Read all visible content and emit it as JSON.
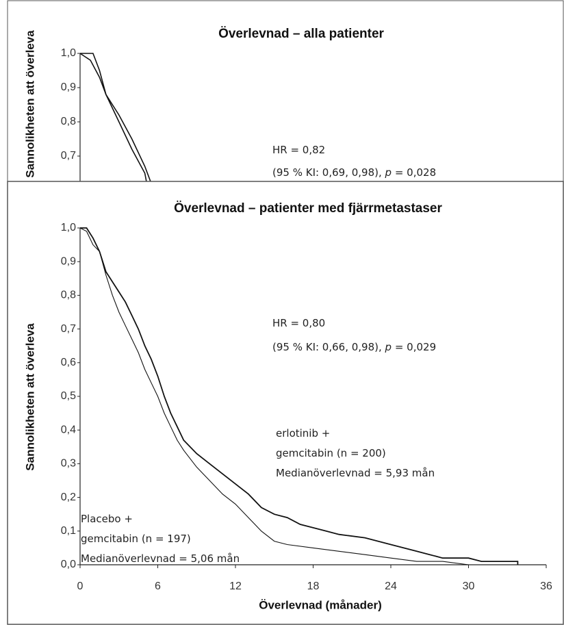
{
  "chart_data": [
    {
      "type": "line",
      "title": "Överlevnad – alla patienter",
      "ylabel": "Sannolikheten att överleva",
      "xlim": [
        0,
        36
      ],
      "ylim": [
        0,
        1
      ],
      "yticks": [
        {
          "value": 0.7,
          "label": "0,7"
        },
        {
          "value": 0.8,
          "label": "0,8"
        },
        {
          "value": 0.9,
          "label": "0,9"
        },
        {
          "value": 1,
          "label": "1,0"
        }
      ],
      "series": [
        {
          "color": "#111111",
          "x": [
            0,
            1,
            1.5,
            2,
            3,
            4,
            5,
            5.6
          ],
          "values": [
            1,
            1,
            0.95,
            0.88,
            0.82,
            0.75,
            0.67,
            0.61
          ]
        },
        {
          "color": "#111111",
          "x": [
            0,
            0.8,
            1.5,
            2,
            3,
            4,
            5,
            5.2
          ],
          "values": [
            1,
            0.98,
            0.93,
            0.88,
            0.8,
            0.72,
            0.65,
            0.61
          ]
        }
      ],
      "annotations": [
        {
          "lines": [
            [
              {
                "text": "HR = 0,82"
              }
            ],
            [
              {
                "text": "(95 % KI: 0,69, 0,98), "
              },
              {
                "text": "p",
                "italic": true
              },
              {
                "text": " = 0,028"
              }
            ]
          ]
        }
      ]
    },
    {
      "type": "line",
      "title": "Överlevnad – patienter med fjärrmetastaser",
      "ylabel": "Sannolikheten att överleva",
      "xlabel": "Överlevnad (månader)",
      "xlim": [
        0,
        36
      ],
      "ylim": [
        0,
        1
      ],
      "xticks": [
        0,
        6,
        12,
        18,
        24,
        30,
        36
      ],
      "yticks": [
        {
          "value": 0,
          "label": "0,0"
        },
        {
          "value": 0.1,
          "label": "0,1"
        },
        {
          "value": 0.2,
          "label": "0,2"
        },
        {
          "value": 0.3,
          "label": "0,3"
        },
        {
          "value": 0.4,
          "label": "0,4"
        },
        {
          "value": 0.5,
          "label": "0,5"
        },
        {
          "value": 0.6,
          "label": "0,6"
        },
        {
          "value": 0.7,
          "label": "0,7"
        },
        {
          "value": 0.8,
          "label": "0,8"
        },
        {
          "value": 0.9,
          "label": "0,9"
        },
        {
          "value": 1,
          "label": "1,0"
        }
      ],
      "series": [
        {
          "color": "#111111",
          "x": [
            0,
            0.5,
            1,
            1.5,
            2,
            2.5,
            3,
            3.5,
            4,
            4.5,
            5,
            5.5,
            6,
            6.5,
            7,
            7.5,
            8,
            9,
            10,
            11,
            12,
            13,
            14,
            15,
            16,
            17,
            18,
            19,
            20,
            22,
            24,
            25,
            26,
            27,
            28,
            30,
            31,
            33.8,
            33.8
          ],
          "values": [
            1,
            1,
            0.97,
            0.93,
            0.87,
            0.84,
            0.81,
            0.78,
            0.74,
            0.7,
            0.65,
            0.61,
            0.56,
            0.5,
            0.45,
            0.41,
            0.37,
            0.33,
            0.3,
            0.27,
            0.24,
            0.21,
            0.17,
            0.15,
            0.14,
            0.12,
            0.11,
            0.1,
            0.09,
            0.08,
            0.06,
            0.05,
            0.04,
            0.03,
            0.02,
            0.02,
            0.01,
            0.01,
            0
          ]
        },
        {
          "color": "#111111",
          "x": [
            0,
            0.5,
            1,
            1.5,
            2,
            2.5,
            3,
            3.5,
            4,
            4.5,
            5,
            5.5,
            6,
            6.5,
            7,
            7.5,
            8,
            9,
            10,
            11,
            12,
            13,
            14,
            15,
            16,
            18,
            20,
            22,
            24,
            26,
            28,
            30
          ],
          "values": [
            1,
            0.99,
            0.95,
            0.93,
            0.86,
            0.8,
            0.75,
            0.71,
            0.67,
            0.63,
            0.58,
            0.54,
            0.5,
            0.45,
            0.41,
            0.37,
            0.34,
            0.29,
            0.25,
            0.21,
            0.18,
            0.14,
            0.1,
            0.07,
            0.06,
            0.05,
            0.04,
            0.03,
            0.02,
            0.01,
            0.01,
            0
          ]
        }
      ],
      "annotations": [
        {
          "lines": [
            [
              {
                "text": "HR = 0,80"
              }
            ],
            [
              {
                "text": "(95 % KI: 0,66, 0,98), "
              },
              {
                "text": "p",
                "italic": true
              },
              {
                "text": " = 0,029"
              }
            ]
          ]
        },
        {
          "lines": [
            [
              {
                "text": "erlotinib +"
              }
            ],
            [
              {
                "text": "gemcitabin (n = 200)"
              }
            ],
            [
              {
                "text": "Medianöverlevnad = 5,93 mån"
              }
            ]
          ]
        },
        {
          "lines": [
            [
              {
                "text": "Placebo +"
              }
            ],
            [
              {
                "text": "gemcitabin (n = 197)"
              }
            ],
            [
              {
                "text": "Medianöverlevnad = 5,06 mån"
              }
            ]
          ]
        }
      ]
    }
  ]
}
